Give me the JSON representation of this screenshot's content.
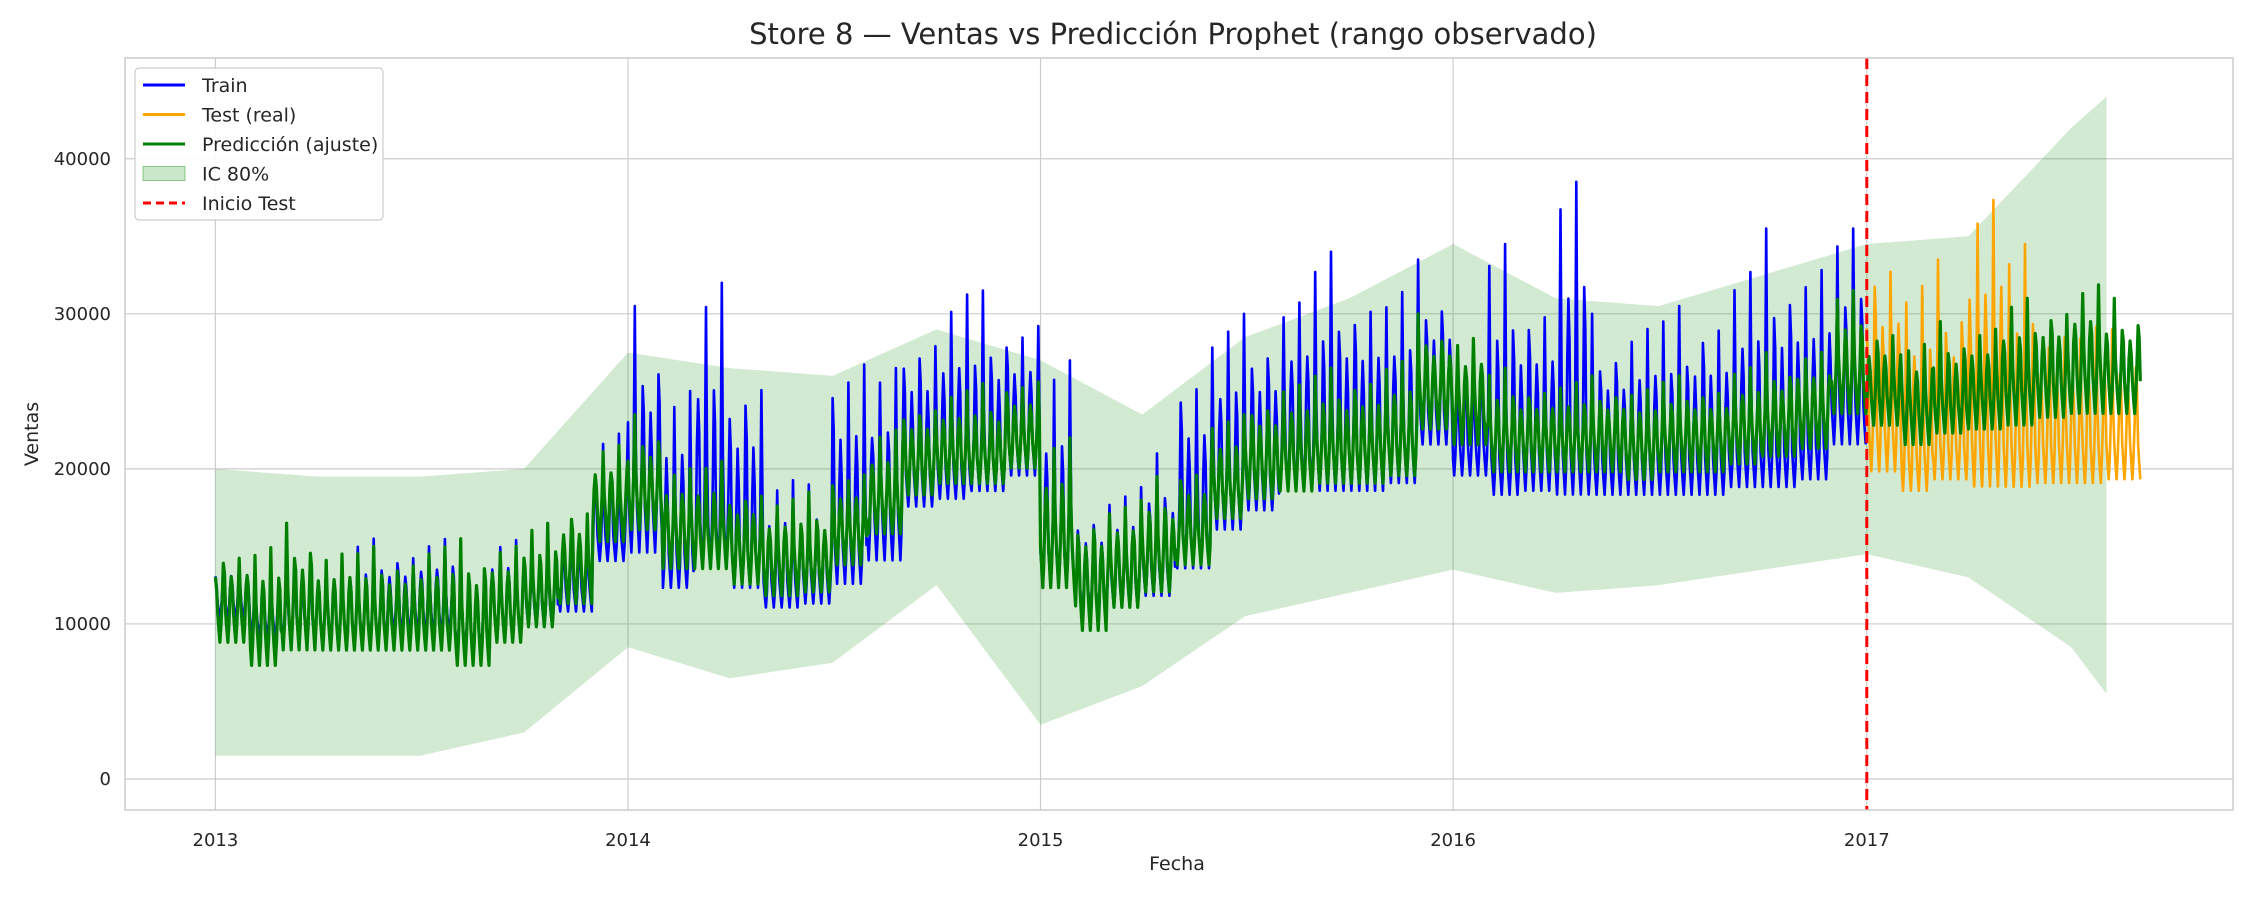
{
  "chart_data": {
    "type": "line",
    "title": "Store 8 — Ventas vs Predicción Prophet (rango observado)",
    "xlabel": "Fecha",
    "ylabel": "Ventas",
    "grid": true,
    "legend_position": "top-left",
    "xlim": [
      "2012-10-13",
      "2017-11-21"
    ],
    "ylim": [
      -2000,
      46500
    ],
    "x_ticks": [
      "2013",
      "2014",
      "2015",
      "2016",
      "2017"
    ],
    "y_ticks": [
      "0",
      "10000",
      "20000",
      "30000",
      "40000"
    ],
    "test_start": "2017-01-01",
    "series": [
      {
        "name": "Train",
        "color": "#0000ff",
        "x": [
          "2013-01",
          "2013-02",
          "2013-03",
          "2013-04",
          "2013-05",
          "2013-06",
          "2013-07",
          "2013-08",
          "2013-09",
          "2013-10",
          "2013-11",
          "2013-12",
          "2014-01",
          "2014-02",
          "2014-03",
          "2014-04",
          "2014-05",
          "2014-06",
          "2014-07",
          "2014-08",
          "2014-09",
          "2014-10",
          "2014-11",
          "2014-12",
          "2015-01",
          "2015-02",
          "2015-03",
          "2015-04",
          "2015-05",
          "2015-06",
          "2015-07",
          "2015-08",
          "2015-09",
          "2015-10",
          "2015-11",
          "2015-12",
          "2016-01",
          "2016-02",
          "2016-03",
          "2016-04",
          "2016-05",
          "2016-06",
          "2016-07",
          "2016-08",
          "2016-09",
          "2016-10",
          "2016-11",
          "2016-12"
        ],
        "y_min": [
          9000,
          7500,
          7000,
          7000,
          7500,
          7500,
          7500,
          6500,
          7500,
          8000,
          9000,
          12000,
          11000,
          9500,
          10000,
          9500,
          9000,
          9000,
          9500,
          10500,
          15000,
          15500,
          16000,
          17000,
          10000,
          9000,
          9000,
          9500,
          10500,
          13000,
          14500,
          16000,
          15500,
          15500,
          16000,
          19000,
          17000,
          15500,
          15500,
          15000,
          15500,
          15500,
          15500,
          15500,
          16000,
          16000,
          16500,
          18500
        ],
        "y_max": [
          15000,
          14000,
          15000,
          15500,
          15500,
          15500,
          16000,
          15500,
          16500,
          16500,
          17500,
          23000,
          30500,
          27500,
          32000,
          29000,
          20000,
          19000,
          29500,
          26500,
          31000,
          32500,
          31500,
          31000,
          27000,
          18500,
          19500,
          21000,
          28500,
          30000,
          31000,
          33000,
          34000,
          33500,
          32500,
          33500,
          30000,
          34500,
          33000,
          40500,
          30000,
          31000,
          30500,
          32000,
          34000,
          35500,
          35500,
          35500
        ],
        "y_mean": [
          11500,
          10500,
          10500,
          10500,
          10500,
          11000,
          11000,
          10000,
          11000,
          11500,
          12500,
          16000,
          18000,
          15000,
          17000,
          15000,
          13000,
          13500,
          15500,
          17500,
          20000,
          20500,
          21000,
          22000,
          15000,
          12500,
          13000,
          14000,
          16500,
          19000,
          20000,
          21500,
          21500,
          21500,
          22000,
          24000,
          22000,
          21000,
          21500,
          21500,
          21000,
          21000,
          21000,
          21000,
          21500,
          21500,
          22000,
          24500
        ]
      },
      {
        "name": "Test (real)",
        "color": "#ffa500",
        "x": [
          "2017-01",
          "2017-02",
          "2017-03",
          "2017-04",
          "2017-05",
          "2017-06",
          "2017-07",
          "2017-08"
        ],
        "y_min": [
          16500,
          15500,
          16500,
          15000,
          15500,
          16000,
          16000,
          16500
        ],
        "y_max": [
          36500,
          33000,
          33500,
          41000,
          34500,
          31000,
          30000,
          29000
        ],
        "y_mean": [
          23000,
          21500,
          22000,
          22500,
          22000,
          22000,
          22000,
          22000
        ]
      },
      {
        "name": "Predicción (ajuste)",
        "color": "#008000",
        "x": [
          "2013-01",
          "2013-02",
          "2013-03",
          "2013-04",
          "2013-05",
          "2013-06",
          "2013-07",
          "2013-08",
          "2013-09",
          "2013-10",
          "2013-11",
          "2013-12",
          "2014-01",
          "2014-02",
          "2014-03",
          "2014-04",
          "2014-05",
          "2014-06",
          "2014-07",
          "2014-08",
          "2014-09",
          "2014-10",
          "2014-11",
          "2014-12",
          "2015-01",
          "2015-02",
          "2015-03",
          "2015-04",
          "2015-05",
          "2015-06",
          "2015-07",
          "2015-08",
          "2015-09",
          "2015-10",
          "2015-11",
          "2015-12",
          "2016-01",
          "2016-02",
          "2016-03",
          "2016-04",
          "2016-05",
          "2016-06",
          "2016-07",
          "2016-08",
          "2016-09",
          "2016-10",
          "2016-11",
          "2016-12",
          "2017-01",
          "2017-02",
          "2017-03",
          "2017-04",
          "2017-05",
          "2017-06",
          "2017-07",
          "2017-08"
        ],
        "y_min": [
          6500,
          4500,
          5500,
          6000,
          6000,
          6000,
          6000,
          4500,
          6500,
          7500,
          9000,
          13000,
          13500,
          11000,
          11000,
          10000,
          9500,
          10000,
          11500,
          13500,
          16000,
          17000,
          17000,
          18000,
          9000,
          6500,
          8500,
          9500,
          11500,
          14500,
          15500,
          16000,
          16500,
          16500,
          17000,
          20000,
          19000,
          17500,
          17500,
          17500,
          17500,
          17000,
          17500,
          17500,
          18000,
          18500,
          19000,
          21000,
          20500,
          19000,
          20000,
          20000,
          20000,
          20500,
          20500,
          21000
        ],
        "y_max": [
          15500,
          15500,
          16500,
          15500,
          15000,
          15000,
          15500,
          15500,
          16000,
          16500,
          18500,
          22000,
          23500,
          21000,
          20500,
          19500,
          18500,
          18500,
          20500,
          22500,
          25000,
          25500,
          25500,
          26500,
          22000,
          18000,
          18500,
          19500,
          21000,
          23500,
          25500,
          26500,
          26500,
          27000,
          27500,
          30000,
          29500,
          26500,
          26000,
          26000,
          26000,
          26000,
          26000,
          26000,
          27000,
          27500,
          28500,
          31500,
          30000,
          28500,
          29500,
          30000,
          31000,
          31500,
          32500,
          31000
        ],
        "y_mean": [
          11000,
          10000,
          11000,
          10500,
          10500,
          10500,
          10500,
          10000,
          11000,
          12000,
          13500,
          17500,
          18500,
          16000,
          16000,
          15000,
          14000,
          14000,
          16000,
          18000,
          20500,
          21000,
          21000,
          22000,
          15500,
          12500,
          13500,
          14500,
          16000,
          19000,
          20500,
          21000,
          21500,
          21500,
          22000,
          25000,
          24000,
          22000,
          22000,
          22000,
          22000,
          21500,
          22000,
          22000,
          22500,
          23000,
          23500,
          26000,
          25000,
          24000,
          24500,
          25000,
          25500,
          26000,
          26500,
          26000
        ]
      }
    ],
    "interval": {
      "name": "IC 80%",
      "color": "#2ca02c",
      "x": [
        "2013-01",
        "2013-04",
        "2013-07",
        "2013-10",
        "2014-01",
        "2014-04",
        "2014-07",
        "2014-10",
        "2015-01",
        "2015-04",
        "2015-07",
        "2015-10",
        "2016-01",
        "2016-04",
        "2016-07",
        "2016-10",
        "2017-01",
        "2017-04",
        "2017-07",
        "2017-08"
      ],
      "lower": [
        1500,
        1500,
        1500,
        3000,
        8500,
        6500,
        7500,
        12500,
        3500,
        6000,
        10500,
        12000,
        13500,
        12000,
        12500,
        13500,
        14500,
        13000,
        8500,
        5500
      ],
      "upper": [
        20000,
        19500,
        19500,
        20000,
        27500,
        26500,
        26000,
        29000,
        27000,
        23500,
        28500,
        31000,
        34500,
        31000,
        30500,
        32500,
        34500,
        35000,
        42000,
        44000
      ]
    },
    "legend": [
      {
        "label": "Train",
        "color": "#0000ff",
        "kind": "line"
      },
      {
        "label": "Test (real)",
        "color": "#ffa500",
        "kind": "line"
      },
      {
        "label": "Predicción (ajuste)",
        "color": "#008000",
        "kind": "line"
      },
      {
        "label": "IC 80%",
        "color": "#2ca02c",
        "kind": "patch"
      },
      {
        "label": "Inicio Test",
        "color": "#ff0000",
        "kind": "dashed"
      }
    ]
  }
}
